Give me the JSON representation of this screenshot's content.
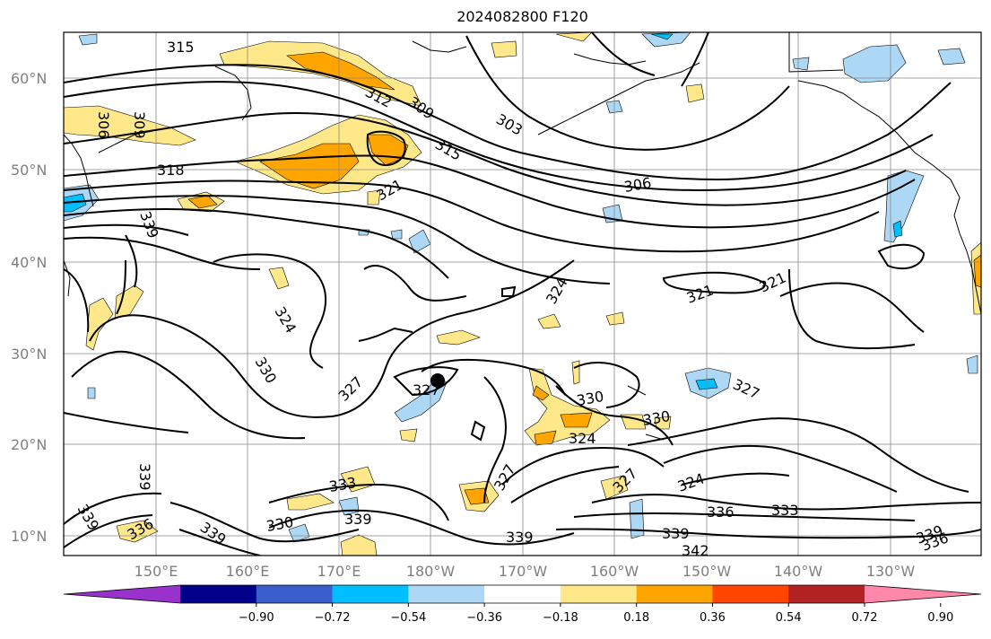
{
  "title": "2024082800 F120",
  "latitude_labels": [
    "60°N",
    "50°N",
    "40°N",
    "30°N",
    "20°N",
    "10°N"
  ],
  "longitude_labels": [
    "150°E",
    "160°E",
    "170°E",
    "180°W",
    "170°W",
    "160°W",
    "150°W",
    "140°W",
    "130°W"
  ],
  "contour_labels": [
    {
      "text": "315",
      "angle": 0
    },
    {
      "text": "312",
      "angle": 28
    },
    {
      "text": "309",
      "angle": 35
    },
    {
      "text": "303",
      "angle": 30
    },
    {
      "text": "306",
      "angle": 90
    },
    {
      "text": "309",
      "angle": 90
    },
    {
      "text": "318",
      "angle": 0
    },
    {
      "text": "315",
      "angle": 30
    },
    {
      "text": "321",
      "angle": -30
    },
    {
      "text": "306",
      "angle": -10
    },
    {
      "text": "339",
      "angle": 70
    },
    {
      "text": "324",
      "angle": 60
    },
    {
      "text": "321",
      "angle": -20
    },
    {
      "text": "321",
      "angle": -25
    },
    {
      "text": "324",
      "angle": -60
    },
    {
      "text": "330",
      "angle": 60
    },
    {
      "text": "327",
      "angle": -45
    },
    {
      "text": "327",
      "angle": 0
    },
    {
      "text": "327",
      "angle": 25
    },
    {
      "text": "330",
      "angle": -10
    },
    {
      "text": "330",
      "angle": -10
    },
    {
      "text": "324",
      "angle": 0
    },
    {
      "text": "327",
      "angle": -60
    },
    {
      "text": "327",
      "angle": -45
    },
    {
      "text": "324",
      "angle": -20
    },
    {
      "text": "339",
      "angle": 90
    },
    {
      "text": "339",
      "angle": 60
    },
    {
      "text": "336",
      "angle": -30
    },
    {
      "text": "339",
      "angle": 35
    },
    {
      "text": "333",
      "angle": -10
    },
    {
      "text": "330",
      "angle": -10
    },
    {
      "text": "339",
      "angle": 0
    },
    {
      "text": "339",
      "angle": 0
    },
    {
      "text": "339",
      "angle": 0
    },
    {
      "text": "336",
      "angle": 0
    },
    {
      "text": "333",
      "angle": 0
    },
    {
      "text": "342",
      "angle": 0
    },
    {
      "text": "339",
      "angle": -20
    },
    {
      "text": "336",
      "angle": -20
    }
  ],
  "colorbar": {
    "ticks": [
      "−0.90",
      "−0.72",
      "−0.54",
      "−0.36",
      "−0.18",
      "0.18",
      "0.36",
      "0.54",
      "0.72",
      "0.90"
    ],
    "colors": [
      "#9932cc",
      "#00008b",
      "#3a5ecc",
      "#00bfff",
      "#add8f5",
      "#ffffff",
      "#ffe88a",
      "#ffa500",
      "#ff4500",
      "#b22222",
      "#ff88aa"
    ]
  },
  "fill_colors": {
    "light_yellow": "#ffe88a",
    "orange": "#ffa500",
    "light_blue": "#add8f5",
    "deep_sky": "#00bfff"
  }
}
